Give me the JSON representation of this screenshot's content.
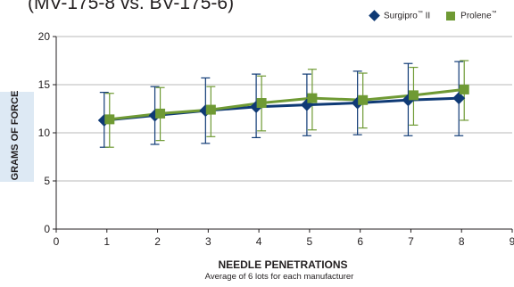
{
  "chart_data": {
    "type": "line",
    "title": "(MV-175-8 vs. BV-175-6)",
    "xlabel": "NEEDLE PENETRATIONS",
    "xsublabel": "Average of 6 lots for each manufacturer",
    "ylabel": "GRAMS OF FORCE",
    "xlim": [
      0,
      9
    ],
    "ylim": [
      0,
      20
    ],
    "xticks": [
      0,
      1,
      2,
      3,
      4,
      5,
      6,
      7,
      8,
      9
    ],
    "yticks": [
      0,
      5,
      10,
      15,
      20
    ],
    "grid": "horizontal",
    "legend_position": "top-right",
    "series": [
      {
        "name": "Surgipro",
        "name_mark": "™",
        "name_suffix": " II",
        "color": "#0f3a75",
        "marker": "diamond",
        "x": [
          1,
          2,
          3,
          4,
          5,
          6,
          7,
          8
        ],
        "y": [
          11.3,
          11.8,
          12.3,
          12.7,
          12.9,
          13.1,
          13.4,
          13.6
        ],
        "err_low": [
          8.5,
          8.8,
          8.9,
          9.5,
          9.7,
          9.8,
          9.7,
          9.7
        ],
        "err_high": [
          14.2,
          14.8,
          15.7,
          16.1,
          16.1,
          16.4,
          17.2,
          17.4
        ]
      },
      {
        "name": "Prolene",
        "name_mark": "™",
        "name_suffix": "",
        "color": "#6f9a34",
        "marker": "square",
        "x": [
          1,
          2,
          3,
          4,
          5,
          6,
          7,
          8
        ],
        "y": [
          11.4,
          12.0,
          12.4,
          13.1,
          13.6,
          13.4,
          13.9,
          14.5
        ],
        "err_low": [
          8.5,
          9.2,
          9.6,
          10.2,
          10.3,
          10.5,
          10.8,
          11.3
        ],
        "err_high": [
          14.1,
          14.7,
          14.8,
          15.9,
          16.6,
          16.2,
          16.8,
          17.5
        ]
      }
    ]
  }
}
